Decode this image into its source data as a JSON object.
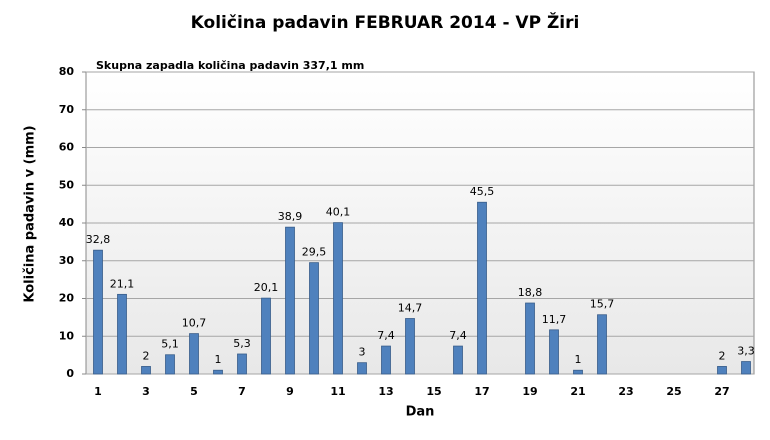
{
  "chart_data": {
    "type": "bar",
    "title": "Količina padavin FEBRUAR 2014 - VP Žiri",
    "annotation": "Skupna zapadla količina padavin 337,1 mm",
    "x_label": "Dan",
    "y_label": "Količina padavin v  (mm)",
    "categories": [
      "1",
      null,
      "3",
      null,
      "5",
      null,
      "7",
      null,
      "9",
      null,
      "11",
      null,
      "13",
      null,
      "15",
      null,
      "17",
      null,
      "19",
      null,
      "21",
      null,
      "23",
      null,
      "25",
      null,
      "27",
      null
    ],
    "values": [
      32.8,
      21.1,
      2,
      5.1,
      10.7,
      1,
      5.3,
      20.1,
      38.9,
      29.5,
      40.1,
      3,
      7.4,
      14.7,
      null,
      7.4,
      45.5,
      null,
      18.8,
      11.7,
      1,
      15.7,
      null,
      null,
      null,
      null,
      2,
      3.3
    ],
    "value_labels": [
      "32,8",
      "21,1",
      "2",
      "5,1",
      "10,7",
      "1",
      "5,3",
      "20,1",
      "38,9",
      "29,5",
      "40,1",
      "3",
      "7,4",
      "14,7",
      null,
      "7,4",
      "45,5",
      null,
      "18,8",
      "11,7",
      "1",
      "15,7",
      null,
      null,
      null,
      null,
      "2",
      "3,3"
    ],
    "color": "#4f81bd",
    "ylim": [
      0,
      80
    ],
    "yticks": [
      0,
      10,
      20,
      30,
      40,
      50,
      60,
      70,
      80
    ],
    "grid": true
  }
}
